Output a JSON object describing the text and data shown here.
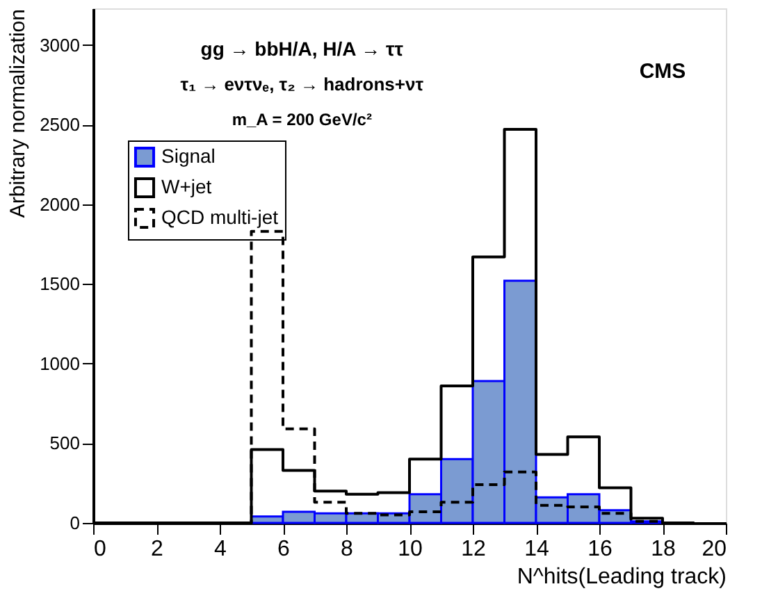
{
  "chart_data": {
    "type": "histogram",
    "ylabel": "Arbitrary normalization",
    "xlabel": "N^hits(Leading track)",
    "annotations": [
      "gg → bbH/A, H/A → ττ",
      "τ₁ → eντνₑ,  τ₂ → hadrons+ντ",
      "m_A = 200 GeV/c²",
      "CMS"
    ],
    "bins": [
      0,
      1,
      2,
      3,
      4,
      5,
      6,
      7,
      8,
      9,
      10,
      11,
      12,
      13,
      14,
      15,
      16,
      17,
      18,
      19,
      20
    ],
    "series": [
      {
        "name": "Signal",
        "type": "histogram",
        "color": "#7b9bd2",
        "values": [
          0,
          0,
          0,
          0,
          0,
          40,
          70,
          60,
          60,
          60,
          180,
          400,
          890,
          1520,
          160,
          180,
          80,
          10,
          0,
          0
        ]
      },
      {
        "name": "W+jet",
        "type": "step",
        "color": "#000000",
        "line_style": "solid",
        "x": [
          0,
          1,
          2,
          3,
          4,
          5,
          6,
          7,
          8,
          9,
          10,
          11,
          12,
          13,
          14,
          15,
          16,
          17,
          18,
          19
        ],
        "values": [
          0,
          0,
          0,
          0,
          0,
          460,
          330,
          200,
          180,
          190,
          400,
          860,
          1670,
          2470,
          430,
          540,
          220,
          30,
          0,
          0
        ]
      },
      {
        "name": "QCD multi-jet",
        "type": "step",
        "color": "#000000",
        "line_style": "dashed",
        "x": [
          0,
          1,
          2,
          3,
          4,
          5,
          6,
          7,
          8,
          9,
          10,
          11,
          12,
          13,
          14,
          15,
          16,
          17,
          18,
          19
        ],
        "values": [
          0,
          0,
          0,
          0,
          0,
          1830,
          590,
          130,
          60,
          50,
          70,
          130,
          240,
          320,
          110,
          100,
          60,
          10,
          0,
          0
        ]
      }
    ],
    "xlim": [
      0,
      20
    ],
    "xticks": [
      0,
      2,
      4,
      6,
      8,
      10,
      12,
      14,
      16,
      18,
      20
    ],
    "ylim": [
      0,
      3230
    ],
    "yticks": [
      0,
      500,
      1000,
      1500,
      2000,
      2500,
      3000
    ],
    "grid": false,
    "legend": "top left"
  }
}
